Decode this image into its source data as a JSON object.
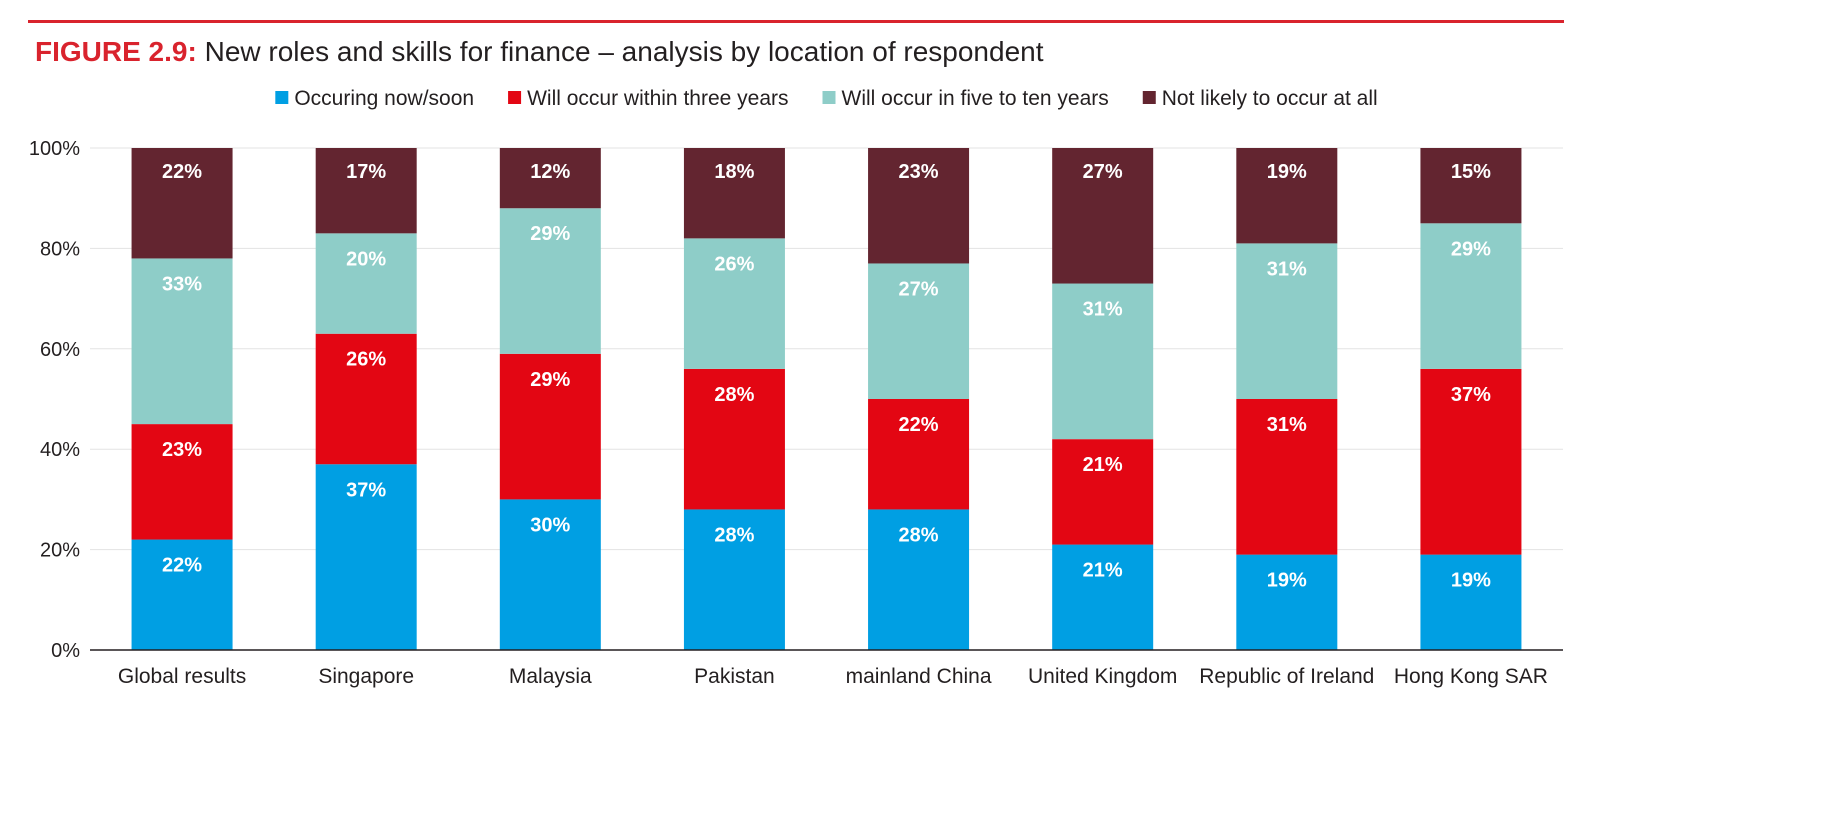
{
  "figure": {
    "prefix": "FIGURE 2.9:",
    "title": "New roles and skills for finance – analysis by location of respondent"
  },
  "chart_data": {
    "type": "bar",
    "stacked": true,
    "title": "New roles and skills for finance – analysis by location of respondent",
    "xlabel": "",
    "ylabel": "",
    "ylim": [
      0,
      100
    ],
    "yticks": [
      "0%",
      "20%",
      "40%",
      "60%",
      "80%",
      "100%"
    ],
    "grid": true,
    "legend_position": "top",
    "categories": [
      "Global results",
      "Singapore",
      "Malaysia",
      "Pakistan",
      "mainland China",
      "United Kingdom",
      "Republic of Ireland",
      "Hong Kong SAR"
    ],
    "series": [
      {
        "name": "Occuring now/soon",
        "color": "#009fe3",
        "values": [
          22,
          37,
          30,
          28,
          28,
          21,
          19,
          19
        ],
        "labels": [
          "22%",
          "37%",
          "30%",
          "28%",
          "28%",
          "21%",
          "19%",
          "19%"
        ]
      },
      {
        "name": "Will occur within three years",
        "color": "#e30613",
        "values": [
          23,
          26,
          29,
          28,
          22,
          21,
          31,
          37
        ],
        "labels": [
          "23%",
          "26%",
          "29%",
          "28%",
          "22%",
          "21%",
          "31%",
          "37%"
        ]
      },
      {
        "name": "Will occur in five to ten years",
        "color": "#8ecdc8",
        "values": [
          33,
          20,
          29,
          26,
          27,
          31,
          31,
          29
        ],
        "labels": [
          "33%",
          "20%",
          "29%",
          "26%",
          "27%",
          "31%",
          "31%",
          "29%"
        ]
      },
      {
        "name": "Not likely to occur at all",
        "color": "#632530",
        "values": [
          22,
          17,
          12,
          18,
          23,
          27,
          19,
          15
        ],
        "labels": [
          "22%",
          "17%",
          "12%",
          "18%",
          "23%",
          "27%",
          "19%",
          "15%"
        ]
      }
    ]
  }
}
